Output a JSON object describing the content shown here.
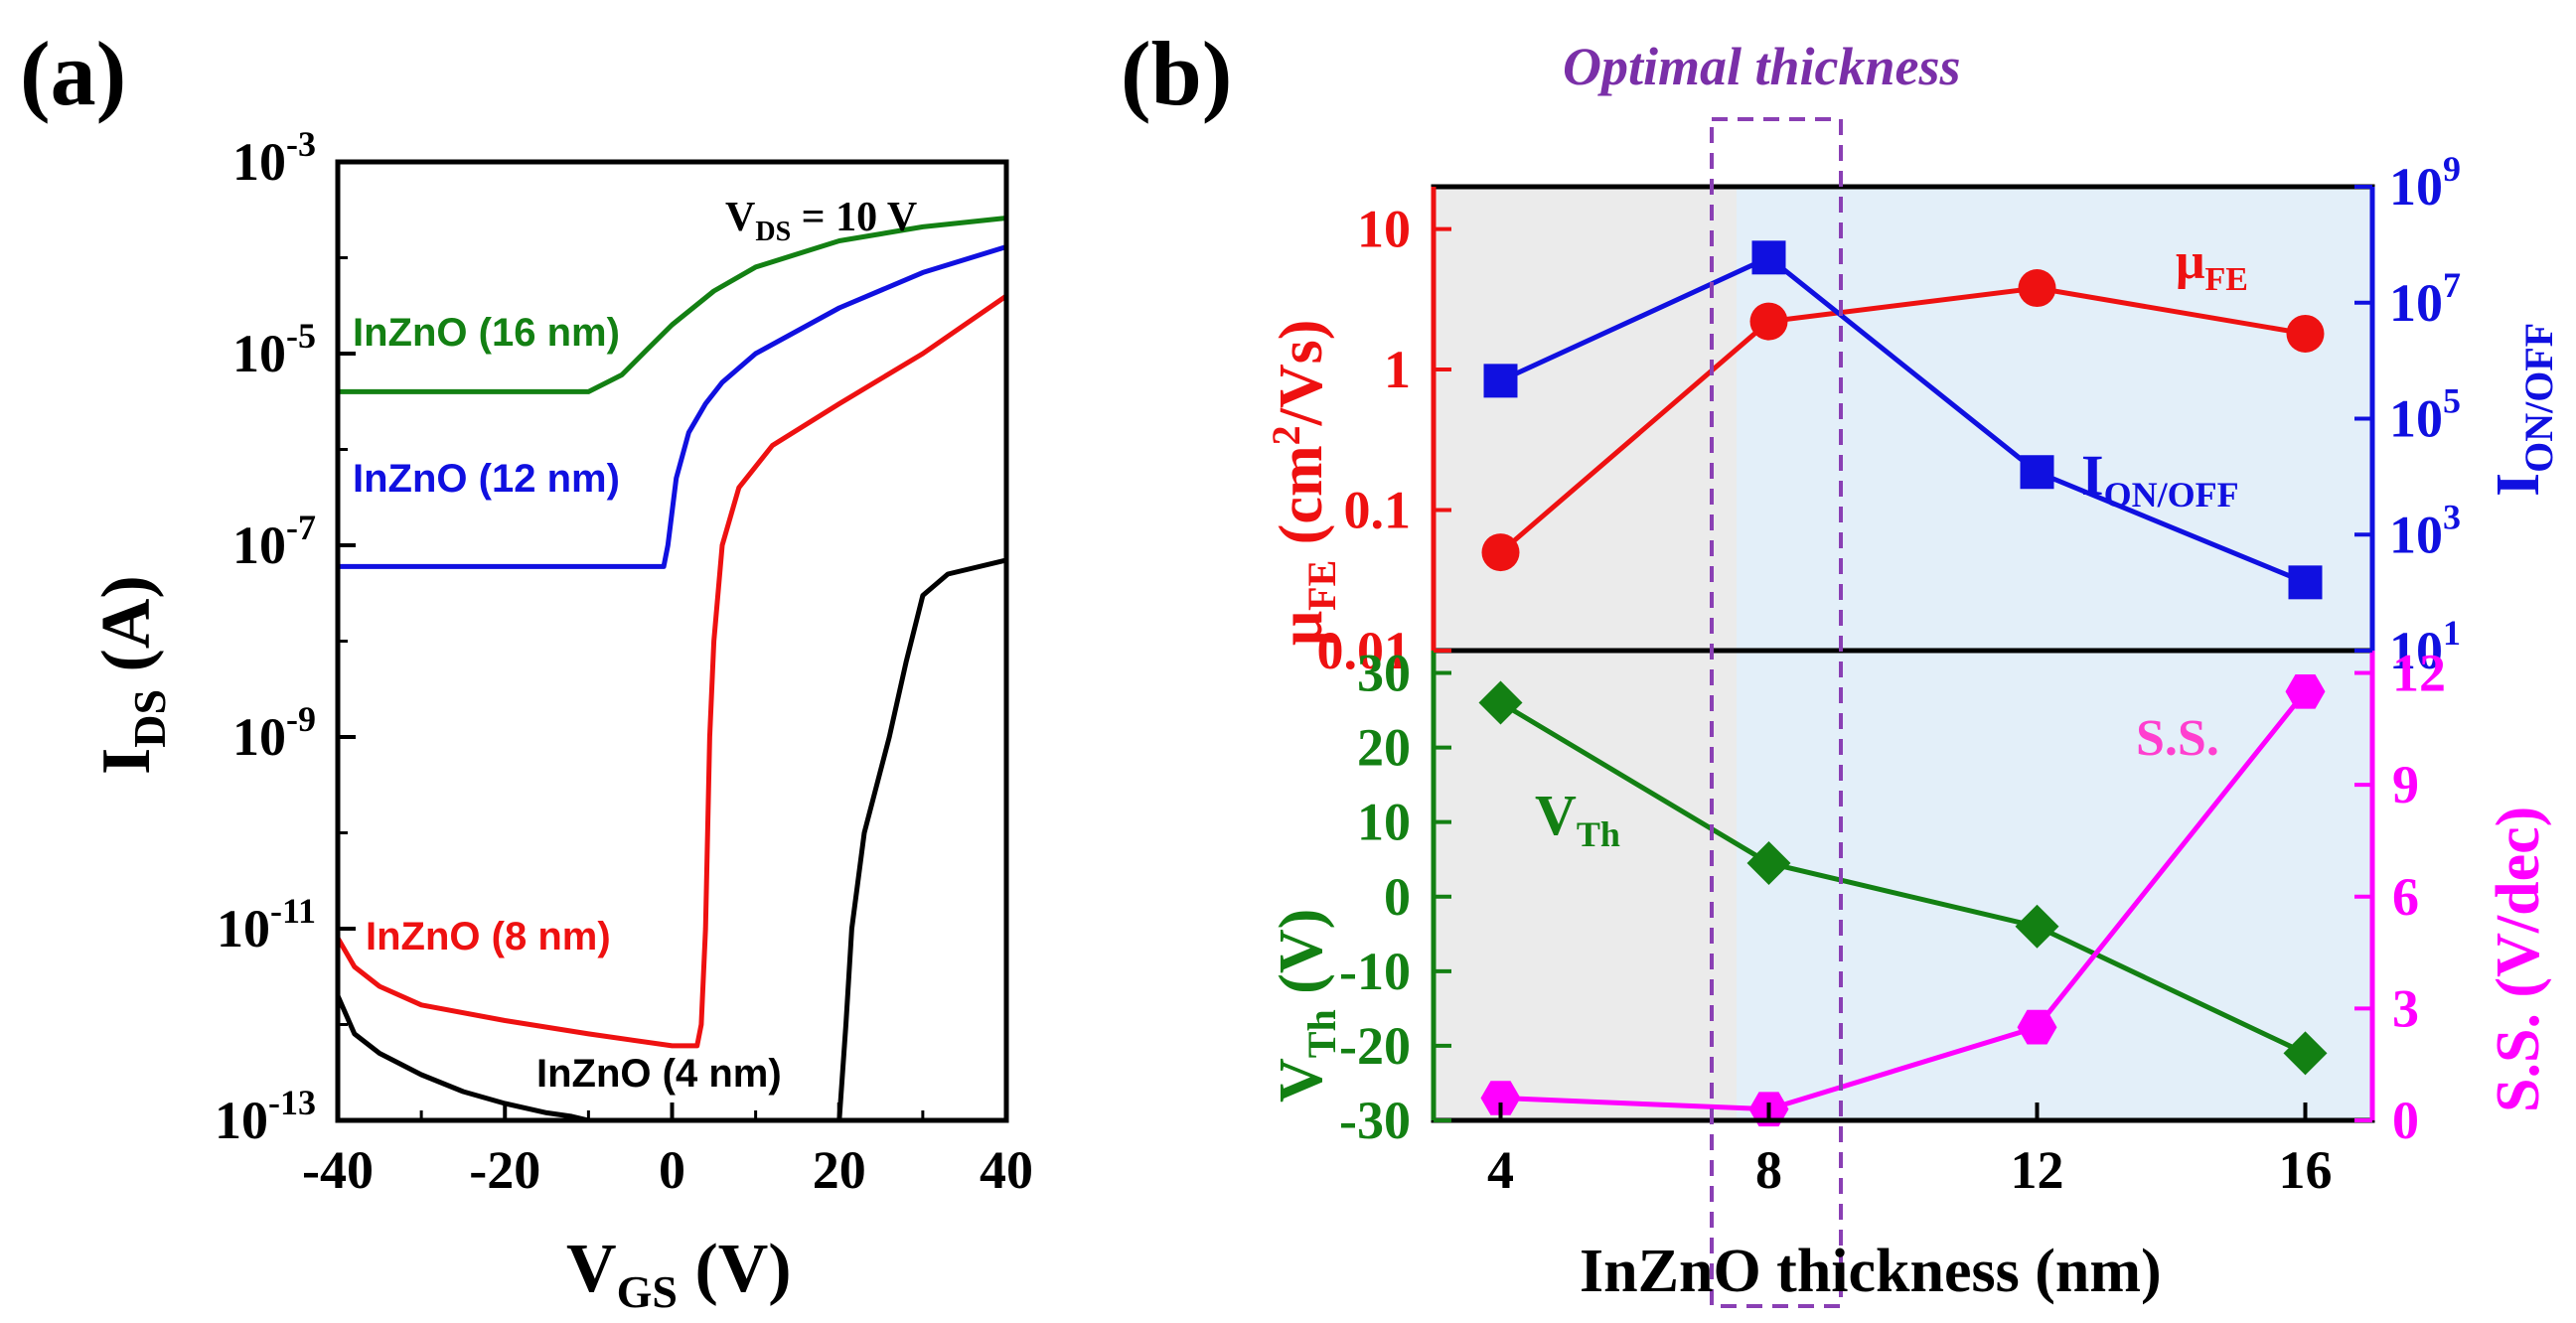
{
  "chart_data": [
    {
      "id": "a",
      "type": "line",
      "panel_label": "(a)",
      "xlabel_main": "V",
      "xlabel_sub": "GS",
      "xlabel_unit": " (V)",
      "ylabel_main": "I",
      "ylabel_sub": "DS",
      "ylabel_unit": " (A)",
      "yscale": "log",
      "xlim": [
        -40,
        40
      ],
      "ylim": [
        1e-13,
        0.001
      ],
      "x_ticks": [
        -40,
        -20,
        0,
        20,
        40
      ],
      "x_tick_labels": [
        "-40",
        "-20",
        "0",
        "20",
        "40"
      ],
      "y_ticks": [
        1e-13,
        1e-11,
        1e-09,
        1e-07,
        1e-05,
        0.001
      ],
      "y_tick_bases": [
        "10",
        "10",
        "10",
        "10",
        "10",
        "10"
      ],
      "y_tick_exps": [
        "-13",
        "-11",
        "-9",
        "-7",
        "-5",
        "-3"
      ],
      "annotation": {
        "main": "V",
        "sub": "DS",
        "rest": " = 10 V"
      },
      "series": [
        {
          "name": "InZnO (16 nm)",
          "color": "#138013",
          "x": [
            -40,
            -30,
            -20,
            -10,
            -6,
            -3,
            0,
            5,
            10,
            20,
            30,
            40
          ],
          "y": [
            4e-06,
            4e-06,
            4e-06,
            4e-06,
            6e-06,
            1.1e-05,
            2e-05,
            4.5e-05,
            8e-05,
            0.00015,
            0.00021,
            0.00026
          ]
        },
        {
          "name": "InZnO (12 nm)",
          "color": "#1010e0",
          "x": [
            -40,
            -20,
            -1,
            -0.5,
            0.5,
            2,
            4,
            6,
            10,
            20,
            30,
            40
          ],
          "y": [
            6e-08,
            6e-08,
            6e-08,
            1e-07,
            5e-07,
            1.5e-06,
            3e-06,
            5e-06,
            1e-05,
            3e-05,
            7e-05,
            0.00013
          ]
        },
        {
          "name": "InZnO (8 nm)",
          "color": "#ee1111",
          "x": [
            -40,
            -38,
            -35,
            -30,
            -20,
            -10,
            0,
            3,
            3.5,
            4,
            4.5,
            5,
            6,
            8,
            12,
            20,
            30,
            40
          ],
          "y": [
            8e-12,
            4e-12,
            2.5e-12,
            1.6e-12,
            1.1e-12,
            8e-13,
            6e-13,
            6e-13,
            1e-12,
            1e-11,
            1e-09,
            1e-08,
            1e-07,
            4e-07,
            1.1e-06,
            3e-06,
            1e-05,
            4e-05
          ]
        },
        {
          "name": "InZnO (4 nm)",
          "color": "#000000",
          "x": [
            -40,
            -38,
            -35,
            -30,
            -25,
            -20,
            -15,
            -12,
            -10,
            20,
            20.8,
            21.5,
            23,
            26,
            28,
            30,
            33,
            40
          ],
          "y": [
            2e-12,
            8e-13,
            5e-13,
            3e-13,
            2e-13,
            1.5e-13,
            1.2e-13,
            1.1e-13,
            1e-13,
            1e-13,
            1e-12,
            1e-11,
            1e-10,
            1e-09,
            6e-09,
            3e-08,
            5e-08,
            7e-08
          ]
        }
      ],
      "labels": [
        "InZnO (16 nm)",
        "InZnO (12 nm)",
        "InZnO (8 nm)",
        "InZnO (4 nm)"
      ]
    },
    {
      "id": "b-top",
      "type": "line",
      "panel_label": "(b)",
      "title": "Optimal thickness",
      "x": [
        4,
        8,
        12,
        16
      ],
      "xlim": [
        3,
        17
      ],
      "left_axis": {
        "label_main": "μ",
        "label_sub": "FE",
        "label_unit": " (cm",
        "label_sup": "2",
        "label_end": "/Vs)",
        "scale": "log",
        "lim": [
          0.01,
          20
        ],
        "ticks": [
          0.01,
          0.1,
          1,
          10
        ],
        "tick_labels": [
          "0.01",
          "0.1",
          "1",
          "10"
        ]
      },
      "right_axis": {
        "label_main": "I",
        "label_sub": "ON/OFF",
        "scale": "log",
        "lim": [
          10,
          1000000000.0
        ],
        "ticks": [
          10,
          1000.0,
          100000.0,
          10000000.0,
          1000000000.0
        ],
        "tick_bases": [
          "10",
          "10",
          "10",
          "10",
          "10"
        ],
        "tick_exps": [
          "1",
          "3",
          "5",
          "7",
          "9"
        ]
      },
      "series": [
        {
          "name": "μFE",
          "label_main": "μ",
          "label_sub": "FE",
          "color": "#ee1111",
          "marker": "circle",
          "axis": "left",
          "values": [
            0.05,
            2.2,
            3.8,
            1.8
          ]
        },
        {
          "name": "ION/OFF",
          "label_main": "I",
          "label_sub": "ON/OFF",
          "color": "#1010e0",
          "marker": "square",
          "axis": "right",
          "values": [
            450000.0,
            60000000.0,
            12000.0,
            150.0
          ]
        }
      ]
    },
    {
      "id": "b-bottom",
      "type": "line",
      "x": [
        4,
        8,
        12,
        16
      ],
      "xlim": [
        3,
        17
      ],
      "xlabel": "InZnO thickness (nm)",
      "x_ticks": [
        4,
        8,
        12,
        16
      ],
      "x_tick_labels": [
        "4",
        "8",
        "12",
        "16"
      ],
      "left_axis": {
        "label_main": "V",
        "label_sub": "Th",
        "label_unit": " (V)",
        "lim": [
          -30,
          33
        ],
        "ticks": [
          -30,
          -20,
          -10,
          0,
          10,
          20,
          30
        ],
        "tick_labels": [
          "-30",
          "-20",
          "-10",
          "0",
          "10",
          "20",
          "30"
        ]
      },
      "right_axis": {
        "label": "S.S. (V/dec)",
        "lim": [
          0,
          12.6
        ],
        "ticks": [
          0,
          3,
          6,
          9,
          12
        ],
        "tick_labels": [
          "0",
          "3",
          "6",
          "9",
          "12"
        ]
      },
      "series": [
        {
          "name": "VTh",
          "label_main": "V",
          "label_sub": "Th",
          "color": "#138013",
          "marker": "diamond",
          "axis": "left",
          "values": [
            26,
            4.5,
            -4,
            -21
          ]
        },
        {
          "name": "S.S.",
          "label": "S.S.",
          "color": "#ff00ff",
          "marker": "hexagon",
          "axis": "right",
          "values": [
            0.6,
            0.3,
            2.5,
            11.5
          ]
        }
      ]
    }
  ],
  "colors": {
    "region_gray": "#ebebeb",
    "region_blue": "#e3eff9",
    "highlight_box": "#8a3fb4",
    "title_purple": "#7a2fa8"
  }
}
